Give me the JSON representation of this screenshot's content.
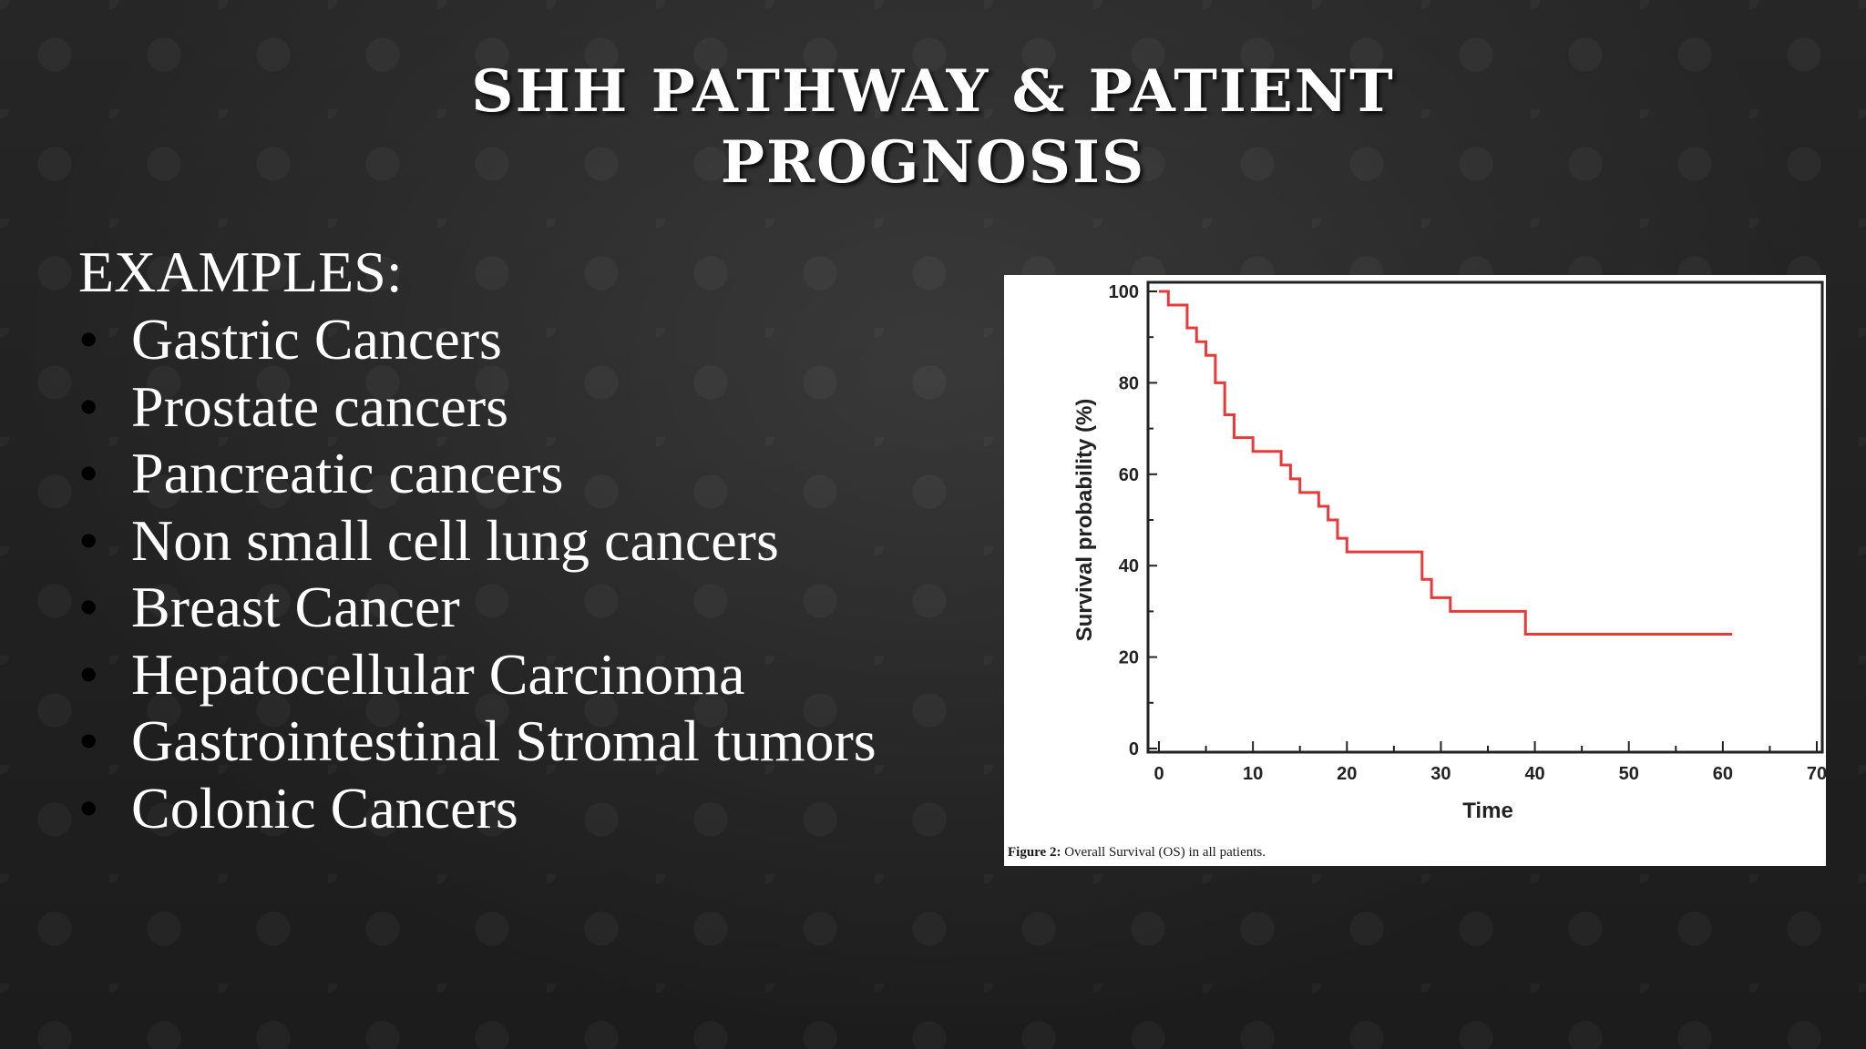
{
  "slide": {
    "title_line1": "SHH PATHWAY & PATIENT",
    "title_line2": "PROGNOSIS",
    "examples_heading": "EXAMPLES:",
    "examples": [
      "Gastric Cancers",
      "Prostate cancers",
      "Pancreatic cancers",
      "Non small cell lung cancers",
      "Breast Cancer",
      "Hepatocellular Carcinoma",
      "Gastrointestinal Stromal tumors",
      "Colonic Cancers"
    ]
  },
  "figure": {
    "caption_label": "Figure 2:",
    "caption_text": "Overall Survival (OS) in all patients."
  },
  "chart_data": {
    "type": "line",
    "title": "",
    "xlabel": "Time",
    "ylabel": "Survival probability (%)",
    "xlim": [
      0,
      70
    ],
    "ylim": [
      0,
      100
    ],
    "xticks": [
      0,
      10,
      20,
      30,
      40,
      50,
      60,
      70
    ],
    "yticks": [
      0,
      20,
      40,
      60,
      80,
      100
    ],
    "line_color": "#e83a3a",
    "series": [
      {
        "step": true,
        "x": [
          0,
          1,
          3,
          4,
          5,
          6,
          7,
          8,
          10,
          13,
          14,
          15,
          17,
          18,
          19,
          20,
          28,
          29,
          31,
          39,
          61
        ],
        "y": [
          100,
          97,
          92,
          89,
          86,
          80,
          73,
          68,
          65,
          62,
          59,
          56,
          53,
          50,
          46,
          43,
          37,
          33,
          30,
          25,
          25
        ]
      }
    ]
  }
}
